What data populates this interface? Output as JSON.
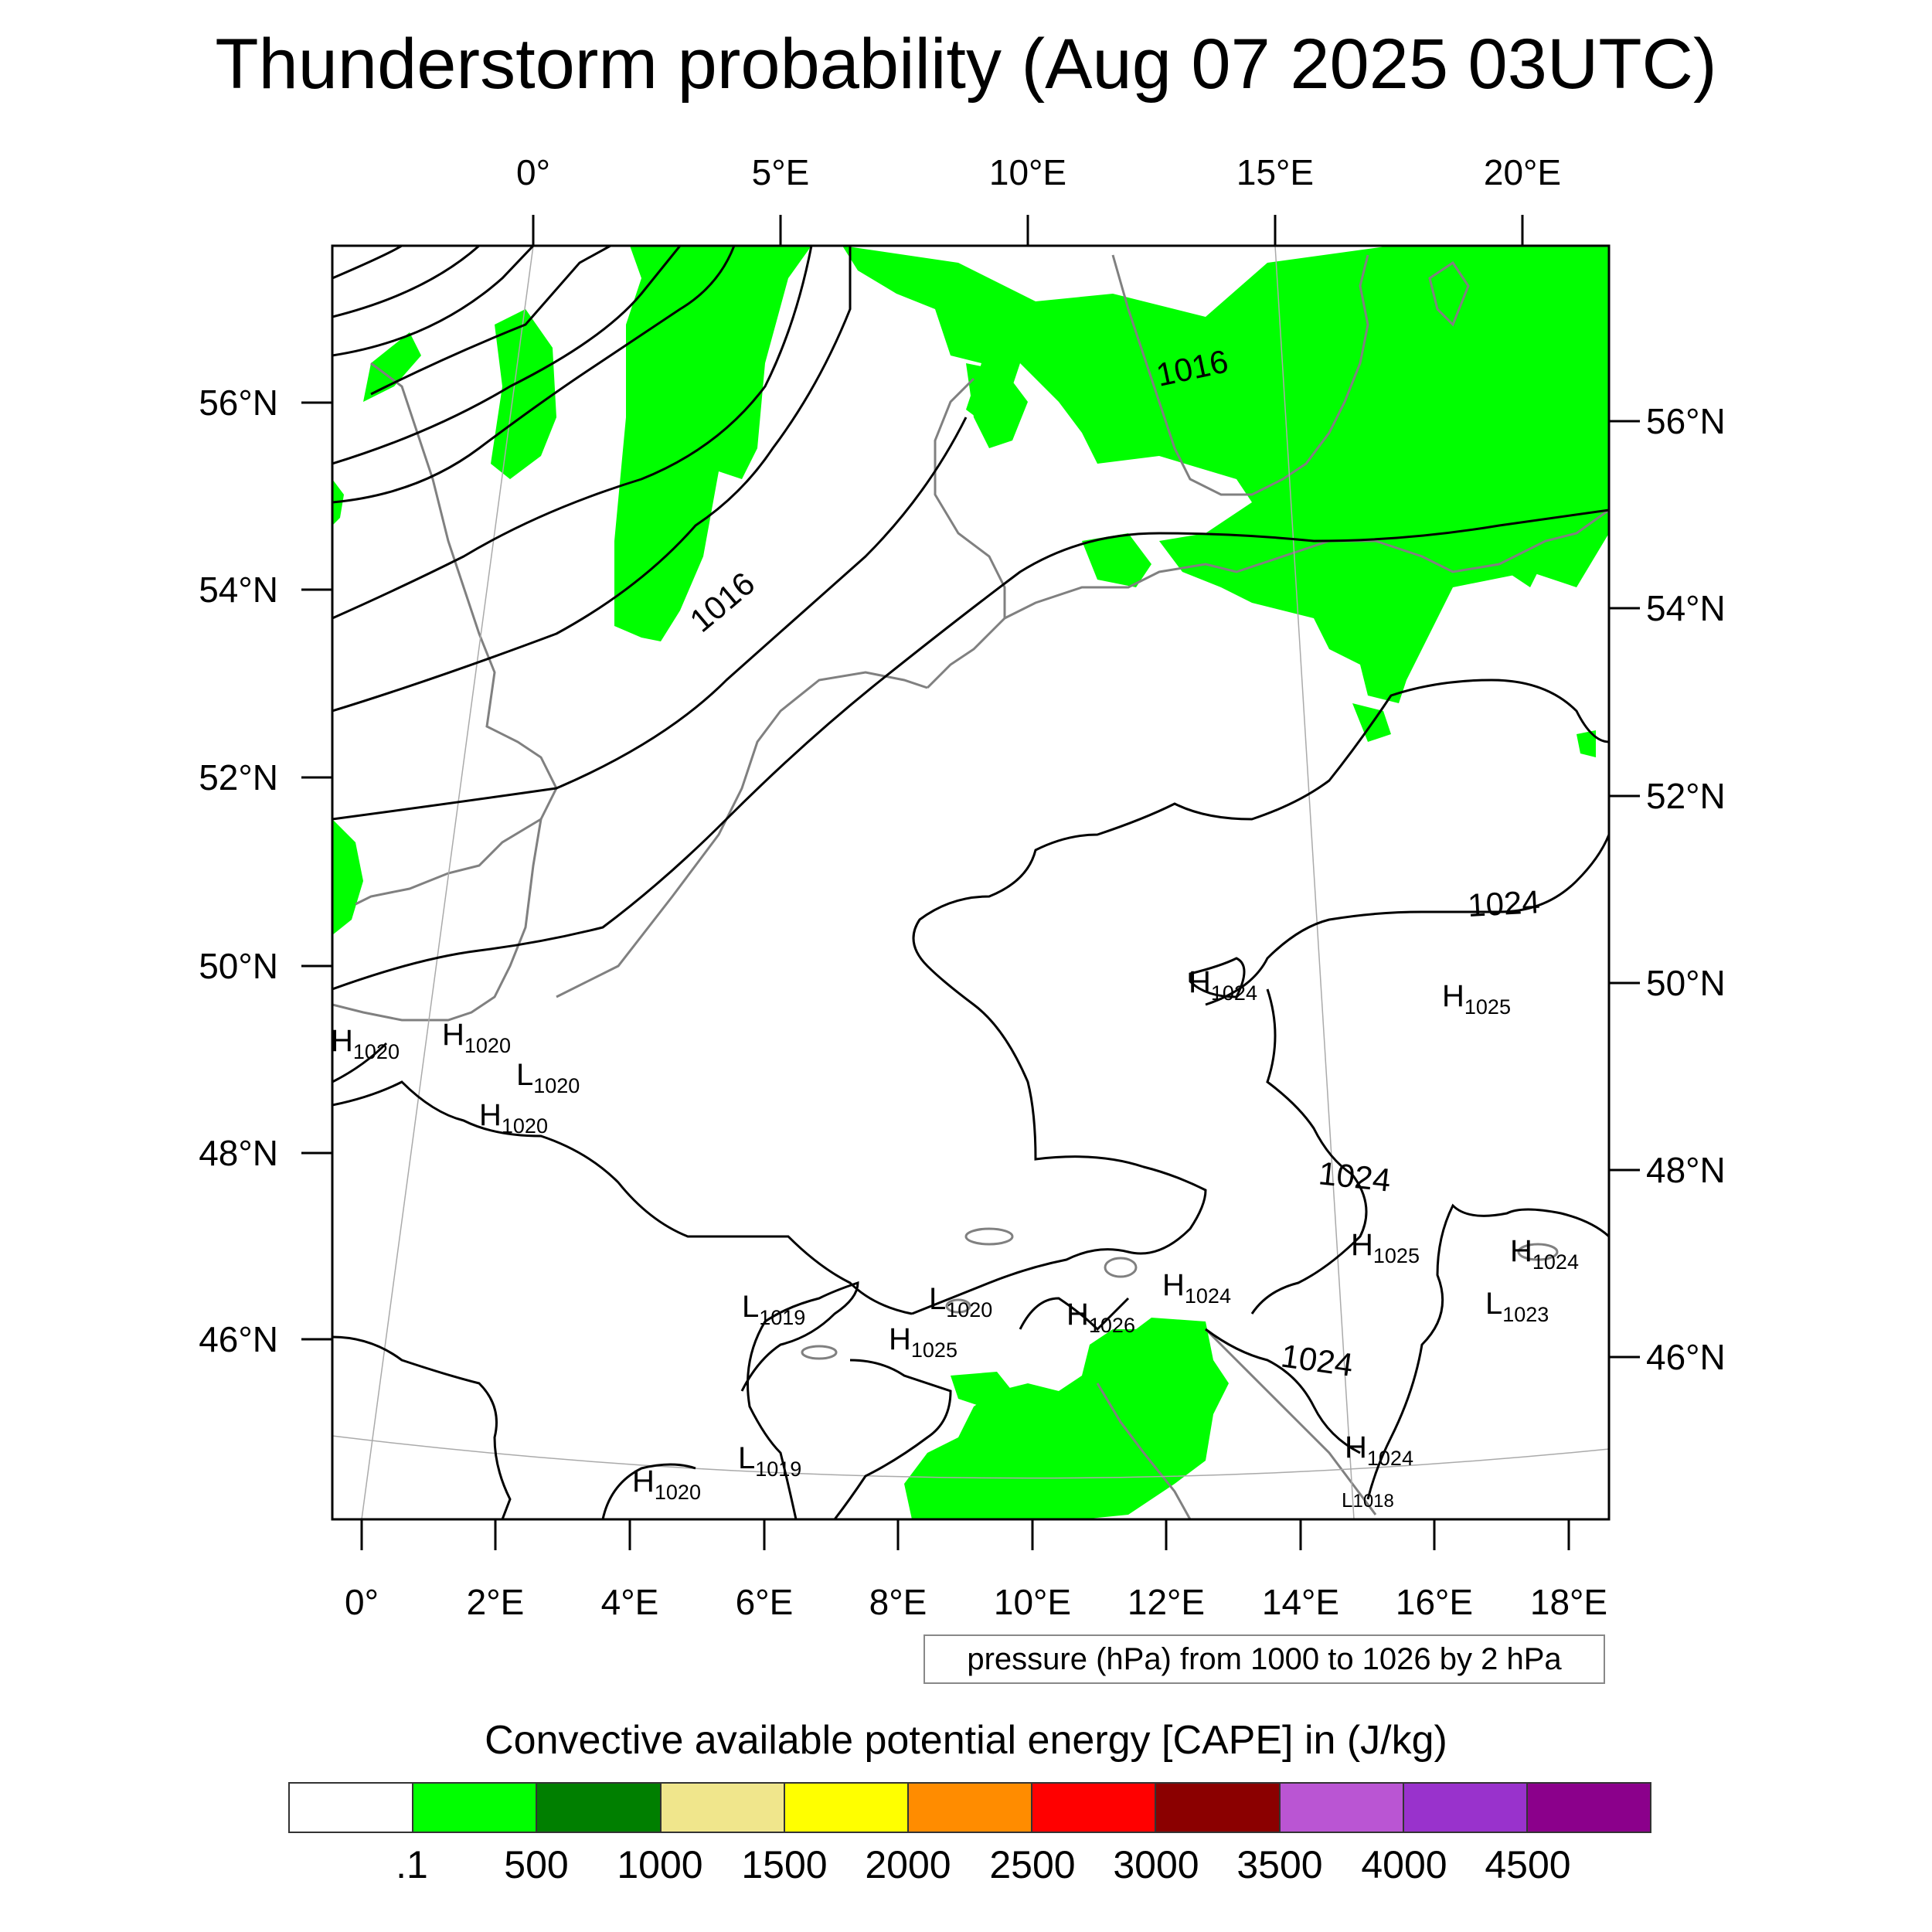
{
  "title": "Thunderstorm probability (Aug 07 2025 03UTC)",
  "map": {
    "top_longitude_labels": [
      "0°",
      "5°E",
      "10°E",
      "15°E",
      "20°E"
    ],
    "bottom_longitude_labels": [
      "0°",
      "2°E",
      "4°E",
      "6°E",
      "8°E",
      "10°E",
      "12°E",
      "14°E",
      "16°E",
      "18°E"
    ],
    "left_latitude_labels": [
      "56°N",
      "54°N",
      "52°N",
      "50°N",
      "48°N",
      "46°N"
    ],
    "right_latitude_labels": [
      "56°N",
      "54°N",
      "52°N",
      "50°N",
      "48°N",
      "46°N"
    ],
    "contour_labels": [
      "1016",
      "1016",
      "1024",
      "1024",
      "1024"
    ],
    "pressure_centers": [
      {
        "kind": "H",
        "value": "1020"
      },
      {
        "kind": "H",
        "value": "1020"
      },
      {
        "kind": "L",
        "value": "1020"
      },
      {
        "kind": "H",
        "value": "1020"
      },
      {
        "kind": "H",
        "value": "1024"
      },
      {
        "kind": "H",
        "value": "1025"
      },
      {
        "kind": "H",
        "value": "1025"
      },
      {
        "kind": "H",
        "value": "1024"
      },
      {
        "kind": "L",
        "value": "1023"
      },
      {
        "kind": "L",
        "value": "1019"
      },
      {
        "kind": "L",
        "value": "1020"
      },
      {
        "kind": "H",
        "value": "1025"
      },
      {
        "kind": "H",
        "value": "1026"
      },
      {
        "kind": "H",
        "value": "1024"
      },
      {
        "kind": "H",
        "value": "1024"
      },
      {
        "kind": "L",
        "value": "1019"
      },
      {
        "kind": "H",
        "value": "1020"
      },
      {
        "kind": "L",
        "value": "1018"
      }
    ],
    "cape_fill_color": "#00ff00",
    "isobar_color": "#000000",
    "coastline_color": "#808080"
  },
  "contour_info": "pressure (hPa) from 1000 to 1026 by 2 hPa",
  "colorbar": {
    "title": "Convective available potential energy [CAPE] in (J/kg)",
    "colors": [
      "#ffffff",
      "#00ff00",
      "#007f00",
      "#f0e68c",
      "#ffff00",
      "#ff8c00",
      "#ff0000",
      "#8b0000",
      "#ba55d3",
      "#9932cc",
      "#8b008b"
    ],
    "labels": [
      ".1",
      "500",
      "1000",
      "1500",
      "2000",
      "2500",
      "3000",
      "3500",
      "4000",
      "4500"
    ]
  }
}
